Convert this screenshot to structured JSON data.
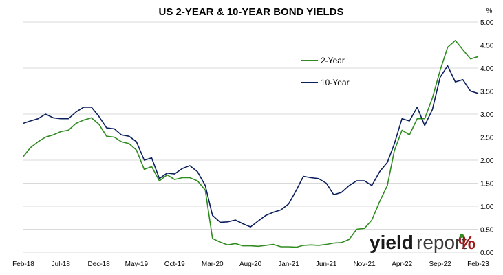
{
  "chart_data": {
    "type": "line",
    "title": "US 2-YEAR & 10-YEAR BOND YIELDS",
    "y_unit": "%",
    "ylim": [
      0,
      5
    ],
    "y_ticks": [
      "0.00",
      "0.50",
      "1.00",
      "1.50",
      "2.00",
      "2.50",
      "3.00",
      "3.50",
      "4.00",
      "4.50",
      "5.00"
    ],
    "y_axis_side": "right",
    "grid": "horizontal",
    "legend_position": "top-right-inside",
    "x_ticks": [
      {
        "date": "2018-02-01",
        "label": "Feb-18"
      },
      {
        "date": "2018-07-01",
        "label": "Jul-18"
      },
      {
        "date": "2018-12-01",
        "label": "Dec-18"
      },
      {
        "date": "2019-05-01",
        "label": "May-19"
      },
      {
        "date": "2019-10-01",
        "label": "Oct-19"
      },
      {
        "date": "2020-03-01",
        "label": "Mar-20"
      },
      {
        "date": "2020-08-01",
        "label": "Aug-20"
      },
      {
        "date": "2021-01-01",
        "label": "Jan-21"
      },
      {
        "date": "2021-06-01",
        "label": "Jun-21"
      },
      {
        "date": "2021-11-01",
        "label": "Nov-21"
      },
      {
        "date": "2022-04-01",
        "label": "Apr-22"
      },
      {
        "date": "2022-09-01",
        "label": "Sep-22"
      },
      {
        "date": "2023-02-01",
        "label": "Feb-23"
      }
    ],
    "series": [
      {
        "name": "2-Year",
        "color": "#2e8b1e",
        "points": [
          [
            "2018-02-01",
            2.08
          ],
          [
            "2018-03-01",
            2.27
          ],
          [
            "2018-04-01",
            2.4
          ],
          [
            "2018-05-01",
            2.5
          ],
          [
            "2018-06-01",
            2.55
          ],
          [
            "2018-07-01",
            2.62
          ],
          [
            "2018-08-01",
            2.65
          ],
          [
            "2018-09-01",
            2.8
          ],
          [
            "2018-10-01",
            2.87
          ],
          [
            "2018-11-01",
            2.92
          ],
          [
            "2018-12-01",
            2.78
          ],
          [
            "2019-01-01",
            2.52
          ],
          [
            "2019-02-01",
            2.5
          ],
          [
            "2019-03-01",
            2.4
          ],
          [
            "2019-04-01",
            2.36
          ],
          [
            "2019-05-01",
            2.22
          ],
          [
            "2019-06-01",
            1.8
          ],
          [
            "2019-07-01",
            1.86
          ],
          [
            "2019-08-01",
            1.55
          ],
          [
            "2019-09-01",
            1.68
          ],
          [
            "2019-10-01",
            1.58
          ],
          [
            "2019-11-01",
            1.62
          ],
          [
            "2019-12-01",
            1.62
          ],
          [
            "2020-01-01",
            1.55
          ],
          [
            "2020-02-01",
            1.35
          ],
          [
            "2020-03-01",
            0.3
          ],
          [
            "2020-04-01",
            0.22
          ],
          [
            "2020-05-01",
            0.16
          ],
          [
            "2020-06-01",
            0.19
          ],
          [
            "2020-07-01",
            0.14
          ],
          [
            "2020-08-01",
            0.14
          ],
          [
            "2020-09-01",
            0.13
          ],
          [
            "2020-10-01",
            0.15
          ],
          [
            "2020-11-01",
            0.17
          ],
          [
            "2020-12-01",
            0.12
          ],
          [
            "2021-01-01",
            0.12
          ],
          [
            "2021-02-01",
            0.11
          ],
          [
            "2021-03-01",
            0.15
          ],
          [
            "2021-04-01",
            0.16
          ],
          [
            "2021-05-01",
            0.15
          ],
          [
            "2021-06-01",
            0.17
          ],
          [
            "2021-07-01",
            0.2
          ],
          [
            "2021-08-01",
            0.21
          ],
          [
            "2021-09-01",
            0.28
          ],
          [
            "2021-10-01",
            0.5
          ],
          [
            "2021-11-01",
            0.52
          ],
          [
            "2021-12-01",
            0.7
          ],
          [
            "2022-01-01",
            1.1
          ],
          [
            "2022-02-01",
            1.45
          ],
          [
            "2022-03-01",
            2.2
          ],
          [
            "2022-04-01",
            2.65
          ],
          [
            "2022-05-01",
            2.55
          ],
          [
            "2022-06-01",
            2.9
          ],
          [
            "2022-07-01",
            2.9
          ],
          [
            "2022-08-01",
            3.35
          ],
          [
            "2022-09-01",
            3.95
          ],
          [
            "2022-10-01",
            4.45
          ],
          [
            "2022-11-01",
            4.6
          ],
          [
            "2022-12-01",
            4.4
          ],
          [
            "2023-01-01",
            4.2
          ],
          [
            "2023-02-01",
            4.25
          ]
        ]
      },
      {
        "name": "10-Year",
        "color": "#0b1f5c",
        "points": [
          [
            "2018-02-01",
            2.8
          ],
          [
            "2018-03-01",
            2.85
          ],
          [
            "2018-04-01",
            2.9
          ],
          [
            "2018-05-01",
            3.0
          ],
          [
            "2018-06-01",
            2.92
          ],
          [
            "2018-07-01",
            2.9
          ],
          [
            "2018-08-01",
            2.9
          ],
          [
            "2018-09-01",
            3.05
          ],
          [
            "2018-10-01",
            3.15
          ],
          [
            "2018-11-01",
            3.15
          ],
          [
            "2018-12-01",
            2.95
          ],
          [
            "2019-01-01",
            2.7
          ],
          [
            "2019-02-01",
            2.68
          ],
          [
            "2019-03-01",
            2.55
          ],
          [
            "2019-04-01",
            2.52
          ],
          [
            "2019-05-01",
            2.4
          ],
          [
            "2019-06-01",
            2.0
          ],
          [
            "2019-07-01",
            2.05
          ],
          [
            "2019-08-01",
            1.6
          ],
          [
            "2019-09-01",
            1.72
          ],
          [
            "2019-10-01",
            1.7
          ],
          [
            "2019-11-01",
            1.82
          ],
          [
            "2019-12-01",
            1.88
          ],
          [
            "2020-01-01",
            1.75
          ],
          [
            "2020-02-01",
            1.45
          ],
          [
            "2020-03-01",
            0.8
          ],
          [
            "2020-04-01",
            0.65
          ],
          [
            "2020-05-01",
            0.66
          ],
          [
            "2020-06-01",
            0.7
          ],
          [
            "2020-07-01",
            0.62
          ],
          [
            "2020-08-01",
            0.55
          ],
          [
            "2020-09-01",
            0.68
          ],
          [
            "2020-10-01",
            0.8
          ],
          [
            "2020-11-01",
            0.87
          ],
          [
            "2020-12-01",
            0.92
          ],
          [
            "2021-01-01",
            1.05
          ],
          [
            "2021-02-01",
            1.35
          ],
          [
            "2021-03-01",
            1.65
          ],
          [
            "2021-04-01",
            1.62
          ],
          [
            "2021-05-01",
            1.6
          ],
          [
            "2021-06-01",
            1.5
          ],
          [
            "2021-07-01",
            1.25
          ],
          [
            "2021-08-01",
            1.3
          ],
          [
            "2021-09-01",
            1.45
          ],
          [
            "2021-10-01",
            1.55
          ],
          [
            "2021-11-01",
            1.55
          ],
          [
            "2021-12-01",
            1.45
          ],
          [
            "2022-01-01",
            1.75
          ],
          [
            "2022-02-01",
            1.95
          ],
          [
            "2022-03-01",
            2.35
          ],
          [
            "2022-04-01",
            2.9
          ],
          [
            "2022-05-01",
            2.85
          ],
          [
            "2022-06-01",
            3.15
          ],
          [
            "2022-07-01",
            2.75
          ],
          [
            "2022-08-01",
            3.1
          ],
          [
            "2022-09-01",
            3.8
          ],
          [
            "2022-10-01",
            4.05
          ],
          [
            "2022-11-01",
            3.7
          ],
          [
            "2022-12-01",
            3.75
          ],
          [
            "2023-01-01",
            3.5
          ],
          [
            "2023-02-01",
            3.45
          ]
        ]
      }
    ]
  },
  "logo": {
    "brand_bold": "yield",
    "brand_light": "report",
    "mark": "%"
  }
}
